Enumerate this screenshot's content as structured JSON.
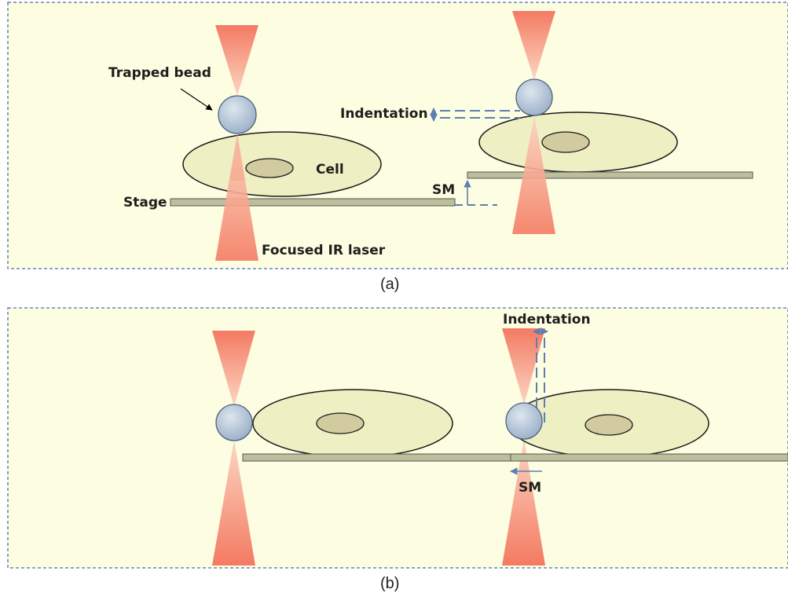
{
  "panel_a": {
    "caption": "(a)",
    "labels": {
      "trapped_bead": "Trapped bead",
      "cell": "Cell",
      "stage": "Stage",
      "laser": "Focused IR laser",
      "indentation": "Indentation",
      "sm": "SM"
    }
  },
  "panel_b": {
    "caption": "(b)",
    "labels": {
      "indentation": "Indentation",
      "sm": "SM"
    }
  },
  "colors": {
    "panel_bg": "#fdfde2",
    "panel_border": "#4a6fa5",
    "laser": "#f47a62",
    "cell_fill": "#efefc4",
    "nucleus_fill": "#d2cba0",
    "stage_fill": "#bdbf9c",
    "bead_fill": "#b3c3d6",
    "arrow_blue": "#5a7fb0"
  }
}
